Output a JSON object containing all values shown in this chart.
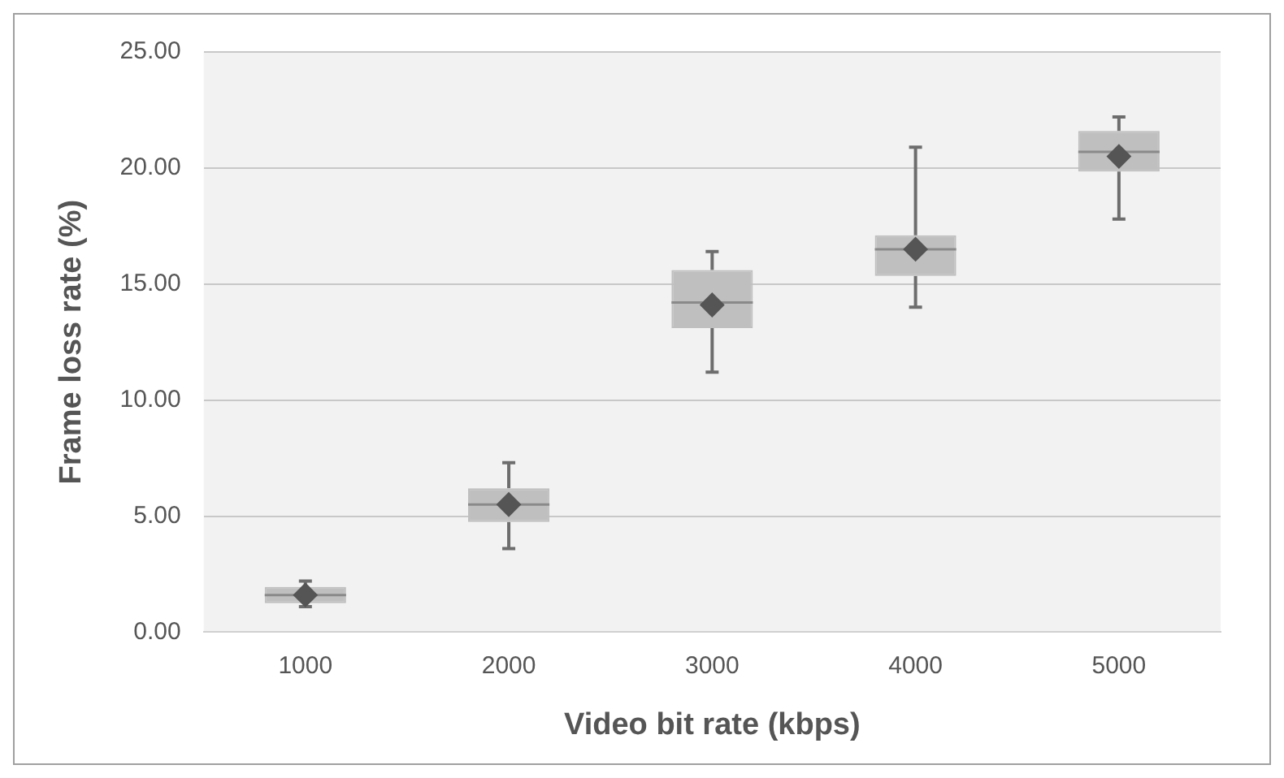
{
  "chart_data": {
    "type": "box",
    "xlabel": "Video bit rate (kbps)",
    "ylabel": "Frame loss rate (%)",
    "categories": [
      "1000",
      "2000",
      "3000",
      "4000",
      "5000"
    ],
    "boxes": [
      {
        "low": 1.1,
        "q1": 1.25,
        "median": 1.6,
        "q3": 1.95,
        "high": 2.2,
        "mean": 1.6
      },
      {
        "low": 3.6,
        "q1": 4.75,
        "median": 5.5,
        "q3": 6.2,
        "high": 7.3,
        "mean": 5.5
      },
      {
        "low": 11.2,
        "q1": 13.1,
        "median": 14.2,
        "q3": 15.6,
        "high": 16.4,
        "mean": 14.1
      },
      {
        "low": 14.0,
        "q1": 15.35,
        "median": 16.5,
        "q3": 17.1,
        "high": 20.9,
        "mean": 16.5
      },
      {
        "low": 17.8,
        "q1": 19.85,
        "median": 20.7,
        "q3": 21.6,
        "high": 22.2,
        "mean": 20.5
      }
    ],
    "color": "#bfbfbf",
    "ylim": [
      0,
      25
    ],
    "yticks": [
      {
        "value": 0,
        "label": "0.00"
      },
      {
        "value": 5,
        "label": "5.00"
      },
      {
        "value": 10,
        "label": "10.00"
      },
      {
        "value": 15,
        "label": "15.00"
      },
      {
        "value": 20,
        "label": "20.00"
      },
      {
        "value": 25,
        "label": "25.00"
      }
    ],
    "grid": "y",
    "legend": false,
    "marker": "diamond"
  }
}
